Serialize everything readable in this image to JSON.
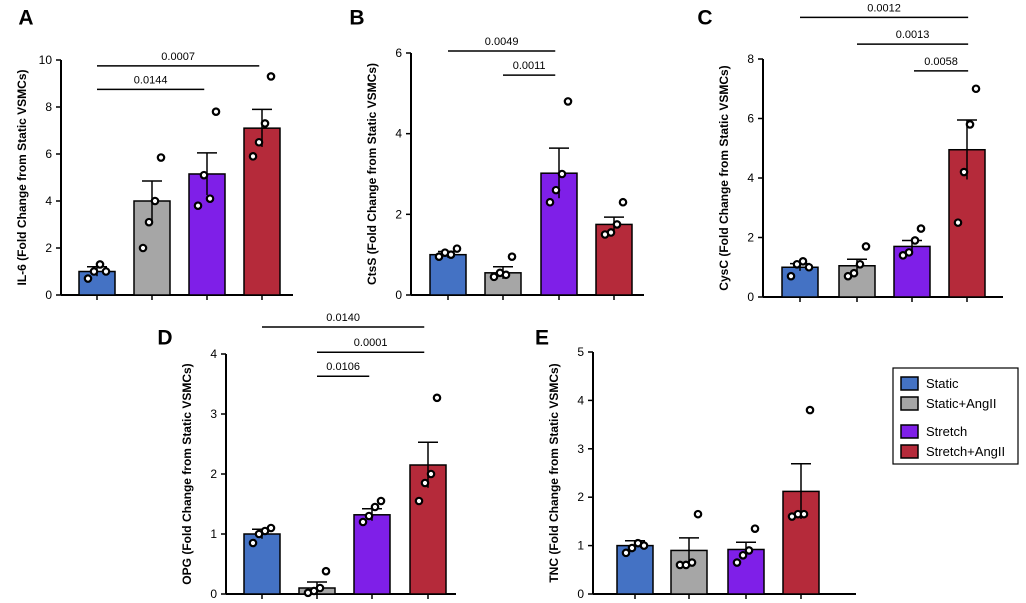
{
  "colors": {
    "Static": "#4472C4",
    "Static+AngII": "#A6A6A6",
    "Stretch": "#7F1FE8",
    "Stretch+AngII": "#B52A3A"
  },
  "legend": {
    "entries": [
      "Static",
      "Static+AngII",
      "Stretch",
      "Stretch+AngII"
    ]
  },
  "chart_data": [
    {
      "panel": "A",
      "type": "bar",
      "ylabel": "IL-6 (Fold Change from Static VSMCs)",
      "ylim": [
        0,
        10
      ],
      "yticks": [
        0,
        2,
        4,
        6,
        8,
        10
      ],
      "categories": [
        "Static",
        "Static+AngII",
        "Stretch",
        "Stretch+AngII"
      ],
      "values": [
        1.0,
        4.0,
        5.15,
        7.1
      ],
      "sem": [
        0.2,
        0.85,
        0.9,
        0.8
      ],
      "points": [
        [
          0.7,
          1.0,
          1.3,
          1.0
        ],
        [
          2.0,
          3.1,
          4.0,
          5.85
        ],
        [
          3.8,
          5.1,
          4.1,
          7.8
        ],
        [
          5.9,
          6.5,
          7.3,
          9.3
        ]
      ],
      "comparisons": [
        {
          "from": 0,
          "to": 1.95,
          "y": 8.75,
          "label": "0.0144"
        },
        {
          "from": 0,
          "to": 2.95,
          "y": 9.75,
          "label": "0.0007"
        }
      ]
    },
    {
      "panel": "B",
      "type": "bar",
      "ylabel": "CtsS (Fold Change from Static VSMCs)",
      "ylim": [
        0,
        6
      ],
      "yticks": [
        0,
        2,
        4,
        6
      ],
      "categories": [
        "Static",
        "Static+AngII",
        "Stretch",
        "Stretch+AngII"
      ],
      "values": [
        1.0,
        0.55,
        3.02,
        1.75
      ],
      "sem": [
        0.08,
        0.15,
        0.62,
        0.18
      ],
      "points": [
        [
          0.95,
          1.05,
          1.0,
          1.15
        ],
        [
          0.45,
          0.55,
          0.5,
          0.95
        ],
        [
          2.3,
          2.6,
          3.0,
          4.8
        ],
        [
          1.5,
          1.55,
          1.75,
          2.3
        ]
      ],
      "comparisons": [
        {
          "from": 1,
          "to": 1.95,
          "y": 5.45,
          "label": "0.0011"
        },
        {
          "from": 0,
          "to": 1.95,
          "y": 6.05,
          "label": "0.0049"
        }
      ]
    },
    {
      "panel": "C",
      "type": "bar",
      "ylabel": "CysC (Fold Change from Static VSMCs)",
      "ylim": [
        0,
        8
      ],
      "yticks": [
        0,
        2,
        4,
        6,
        8
      ],
      "categories": [
        "Static",
        "Static+AngII",
        "Stretch",
        "Stretch+AngII"
      ],
      "values": [
        1.0,
        1.05,
        1.7,
        4.95
      ],
      "sem": [
        0.12,
        0.22,
        0.2,
        1.0
      ],
      "points": [
        [
          0.7,
          1.1,
          1.2,
          1.0
        ],
        [
          0.7,
          0.8,
          1.1,
          1.7
        ],
        [
          1.4,
          1.5,
          1.9,
          2.3
        ],
        [
          2.5,
          4.2,
          5.8,
          7.0
        ]
      ],
      "comparisons": [
        {
          "from": 2,
          "to": 2.95,
          "y": 7.6,
          "label": "0.0058"
        },
        {
          "from": 1,
          "to": 2.95,
          "y": 8.5,
          "label": "0.0013"
        },
        {
          "from": 0,
          "to": 2.95,
          "y": 9.4,
          "label": "0.0012"
        }
      ]
    },
    {
      "panel": "D",
      "type": "bar",
      "ylabel": "OPG (Fold Change from Static VSMCs)",
      "ylim": [
        0,
        4
      ],
      "yticks": [
        0,
        1,
        2,
        3,
        4
      ],
      "categories": [
        "Static",
        "Static+AngII",
        "Stretch",
        "Stretch+AngII"
      ],
      "values": [
        1.0,
        0.1,
        1.32,
        2.15
      ],
      "sem": [
        0.08,
        0.1,
        0.1,
        0.38
      ],
      "points": [
        [
          0.85,
          1.0,
          1.05,
          1.1
        ],
        [
          0.02,
          0.05,
          0.1,
          0.38
        ],
        [
          1.2,
          1.3,
          1.45,
          1.55
        ],
        [
          1.55,
          1.85,
          2.0,
          3.27
        ]
      ],
      "comparisons": [
        {
          "from": 1,
          "to": 1.95,
          "y": 3.63,
          "label": "0.0106"
        },
        {
          "from": 1,
          "to": 2.95,
          "y": 4.03,
          "label": "0.0001"
        },
        {
          "from": 0,
          "to": 2.95,
          "y": 4.45,
          "label": "0.0140"
        }
      ]
    },
    {
      "panel": "E",
      "type": "bar",
      "ylabel": "TNC (Fold Change from Static VSMCs)",
      "ylim": [
        0,
        5
      ],
      "yticks": [
        0,
        1,
        2,
        3,
        4,
        5
      ],
      "categories": [
        "Static",
        "Static+AngII",
        "Stretch",
        "Stretch+AngII"
      ],
      "values": [
        1.0,
        0.9,
        0.92,
        2.12
      ],
      "sem": [
        0.1,
        0.26,
        0.15,
        0.57
      ],
      "points": [
        [
          0.85,
          0.95,
          1.05,
          1.0
        ],
        [
          0.6,
          0.6,
          0.65,
          1.65
        ],
        [
          0.65,
          0.8,
          0.9,
          1.35
        ],
        [
          1.6,
          1.65,
          1.65,
          3.8
        ]
      ],
      "comparisons": []
    }
  ]
}
